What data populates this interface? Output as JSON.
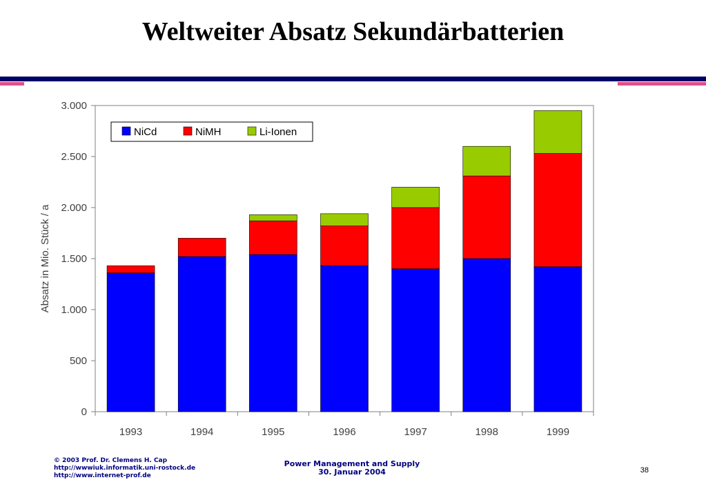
{
  "slide": {
    "title": "Weltweiter Absatz Sekundärbatterien",
    "rule_color": "#000066",
    "accent_color": "#e0508a"
  },
  "footer": {
    "left_lines": [
      "© 2003 Prof. Dr. Clemens H. Cap",
      "http://wwwiuk.informatik.uni-rostock.de",
      "http://www.internet-prof.de"
    ],
    "center_lines": [
      "Power Management and Supply",
      "30. Januar 2004"
    ],
    "page_number": "38"
  },
  "chart_data": {
    "type": "bar",
    "stacked": true,
    "title": "",
    "xlabel": "",
    "ylabel": "Absatz in Mio. Stück / a",
    "categories": [
      "1993",
      "1994",
      "1995",
      "1996",
      "1997",
      "1998",
      "1999"
    ],
    "series": [
      {
        "name": "NiCd",
        "color": "#0000ff",
        "values": [
          1360,
          1520,
          1540,
          1430,
          1400,
          1500,
          1420
        ]
      },
      {
        "name": "NiMH",
        "color": "#ff0000",
        "values": [
          70,
          180,
          330,
          390,
          600,
          810,
          1110
        ]
      },
      {
        "name": "Li-Ionen",
        "color": "#99cc00",
        "values": [
          0,
          0,
          60,
          120,
          200,
          290,
          420
        ]
      }
    ],
    "ylim": [
      0,
      3000
    ],
    "yticks": [
      0,
      500,
      1000,
      1500,
      2000,
      2500,
      3000
    ],
    "ytick_labels": [
      "0",
      "500",
      "1.000",
      "1.500",
      "2.000",
      "2.500",
      "3.000"
    ],
    "grid": false,
    "legend_position": "top-left"
  }
}
